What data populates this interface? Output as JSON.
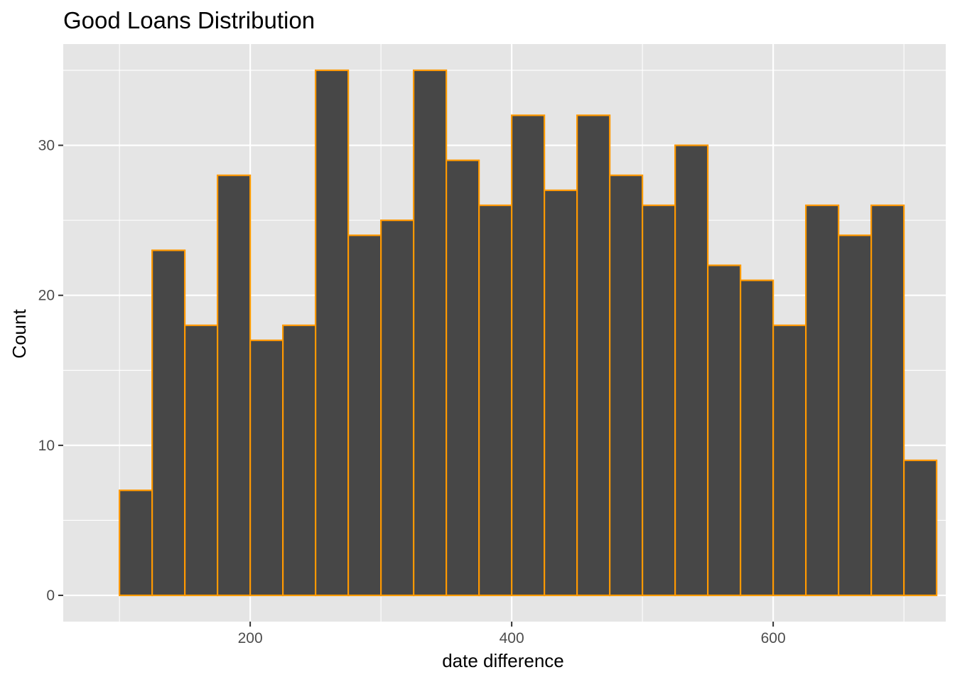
{
  "chart_data": {
    "type": "bar",
    "title": "Good Loans Distribution",
    "xlabel": "date difference",
    "ylabel": "Count",
    "xlim": [
      57,
      732
    ],
    "ylim": [
      -1.75,
      36.75
    ],
    "x_ticks": [
      200,
      400,
      600
    ],
    "y_ticks": [
      0,
      10,
      20,
      30
    ],
    "grid": true,
    "colors": {
      "panel_background": "#e5e5e5",
      "grid": "#ffffff",
      "bar_fill": "#474747",
      "bar_outline": "#ff9900"
    },
    "bins": [
      {
        "x_start": 100,
        "x_end": 125,
        "count": 7
      },
      {
        "x_start": 125,
        "x_end": 150,
        "count": 23
      },
      {
        "x_start": 150,
        "x_end": 175,
        "count": 18
      },
      {
        "x_start": 175,
        "x_end": 200,
        "count": 28
      },
      {
        "x_start": 200,
        "x_end": 225,
        "count": 17
      },
      {
        "x_start": 225,
        "x_end": 250,
        "count": 18
      },
      {
        "x_start": 250,
        "x_end": 275,
        "count": 35
      },
      {
        "x_start": 275,
        "x_end": 300,
        "count": 24
      },
      {
        "x_start": 300,
        "x_end": 325,
        "count": 25
      },
      {
        "x_start": 325,
        "x_end": 350,
        "count": 35
      },
      {
        "x_start": 350,
        "x_end": 375,
        "count": 29
      },
      {
        "x_start": 375,
        "x_end": 400,
        "count": 26
      },
      {
        "x_start": 400,
        "x_end": 425,
        "count": 32
      },
      {
        "x_start": 425,
        "x_end": 450,
        "count": 27
      },
      {
        "x_start": 450,
        "x_end": 475,
        "count": 32
      },
      {
        "x_start": 475,
        "x_end": 500,
        "count": 28
      },
      {
        "x_start": 500,
        "x_end": 525,
        "count": 26
      },
      {
        "x_start": 525,
        "x_end": 550,
        "count": 30
      },
      {
        "x_start": 550,
        "x_end": 575,
        "count": 22
      },
      {
        "x_start": 575,
        "x_end": 600,
        "count": 21
      },
      {
        "x_start": 600,
        "x_end": 625,
        "count": 18
      },
      {
        "x_start": 625,
        "x_end": 650,
        "count": 26
      },
      {
        "x_start": 650,
        "x_end": 675,
        "count": 24
      },
      {
        "x_start": 675,
        "x_end": 700,
        "count": 26
      },
      {
        "x_start": 700,
        "x_end": 725,
        "count": 9
      }
    ]
  }
}
